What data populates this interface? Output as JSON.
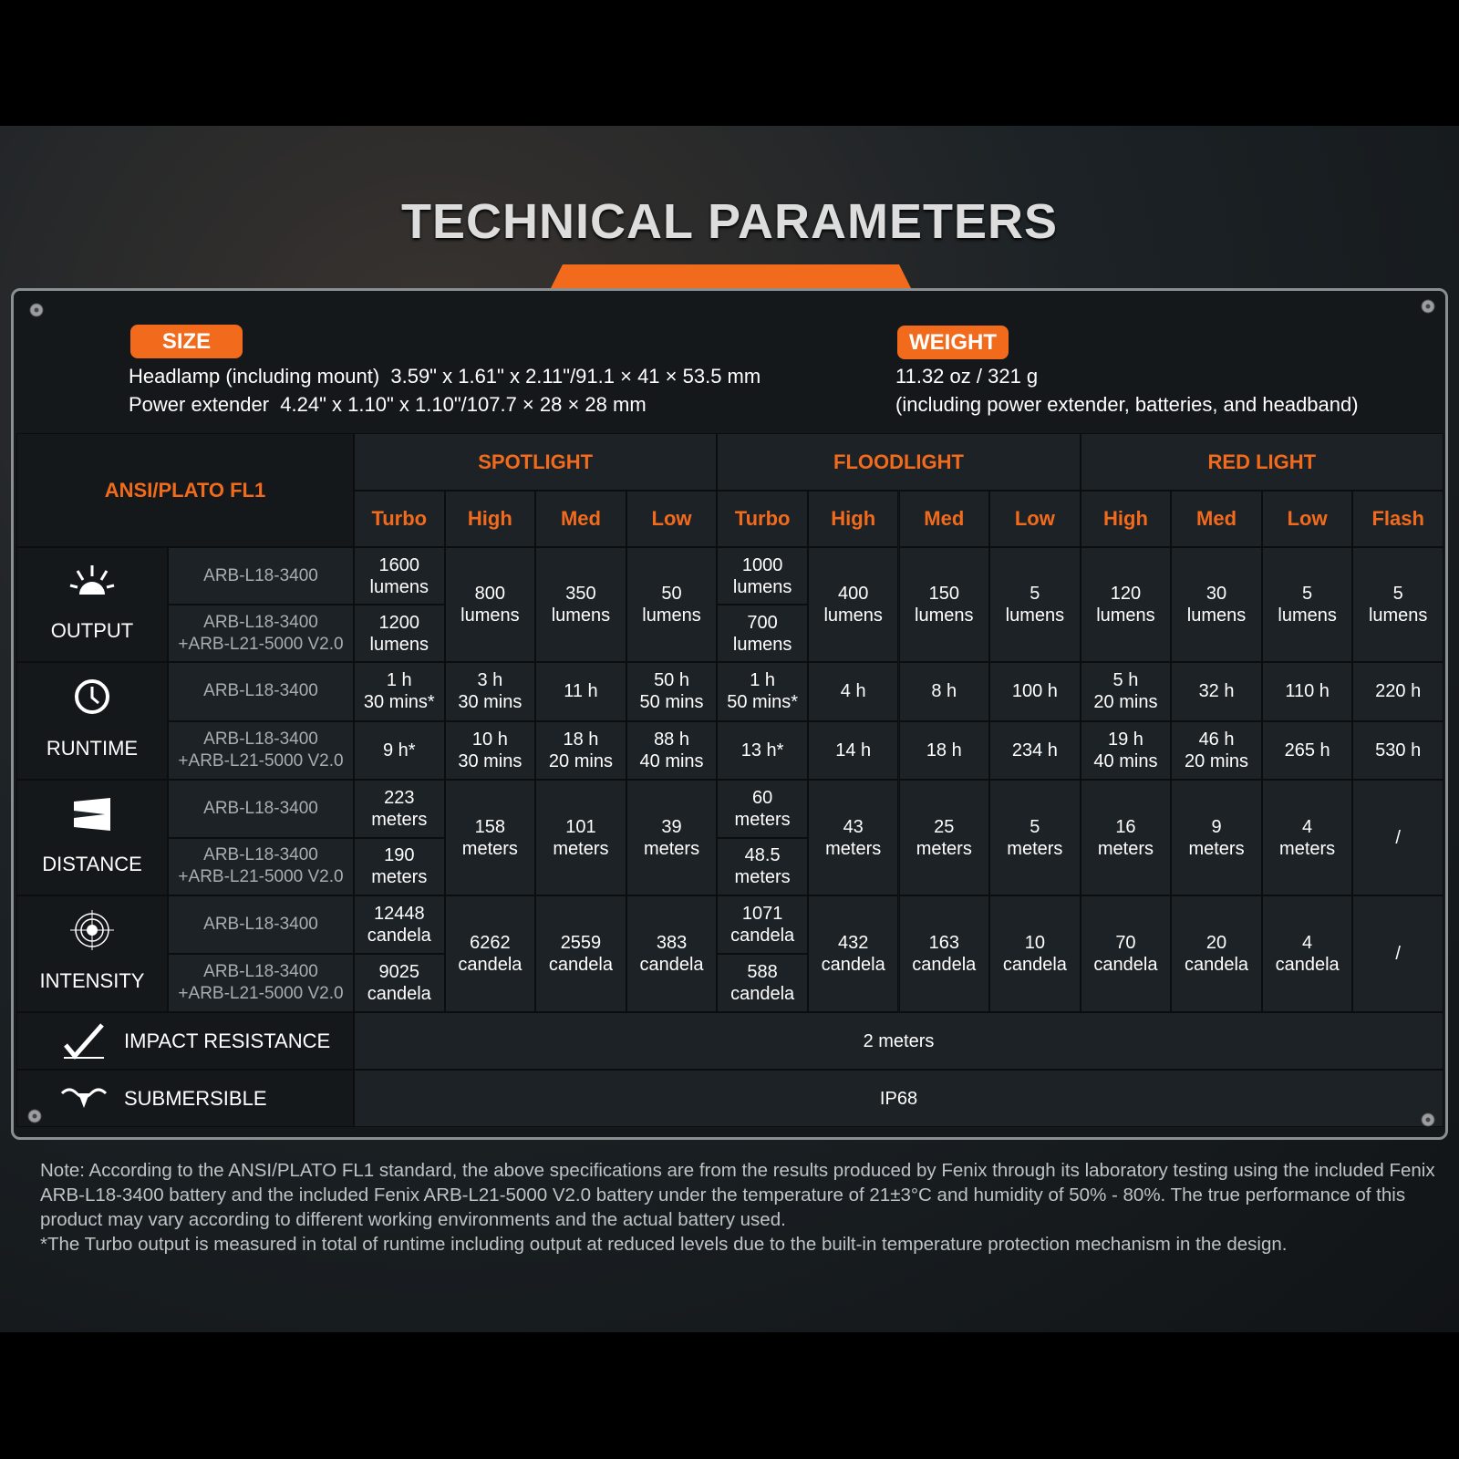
{
  "title": "TECHNICAL PARAMETERS",
  "size": {
    "label": "SIZE",
    "lines": [
      "Headlamp (including mount)  3.59\" x 1.61\" x 2.11\"/91.1 × 41 × 53.5 mm",
      "Power extender  4.24\" x 1.10\" x 1.10\"/107.7 × 28 × 28 mm"
    ]
  },
  "weight": {
    "label": "WEIGHT",
    "lines": [
      "11.32 oz / 321 g",
      "(including power extender, batteries, and headband)"
    ]
  },
  "table": {
    "standard": "ANSI/PLATO FL1",
    "groups": [
      {
        "name": "SPOTLIGHT",
        "modes": [
          "Turbo",
          "High",
          "Med",
          "Low"
        ]
      },
      {
        "name": "FLOODLIGHT",
        "modes": [
          "Turbo",
          "High",
          "Med",
          "Low"
        ]
      },
      {
        "name": "RED LIGHT",
        "modes": [
          "High",
          "Med",
          "Low",
          "Flash"
        ]
      }
    ],
    "batteries": [
      "ARB-L18-3400",
      "ARB-L18-3400\n+ARB-L21-5000 V2.0"
    ],
    "rows": [
      {
        "label": "OUTPUT",
        "cells": [
          [
            "1600\nlumens",
            "1200\nlumens"
          ],
          "800\nlumens",
          "350\nlumens",
          "50\nlumens",
          [
            "1000\nlumens",
            "700\nlumens"
          ],
          "400\nlumens",
          "150\nlumens",
          "5\nlumens",
          "120\nlumens",
          "30\nlumens",
          "5\nlumens",
          "5\nlumens"
        ]
      },
      {
        "label": "RUNTIME",
        "cells": [
          [
            "1 h\n30 mins*",
            "9 h*"
          ],
          [
            "3 h\n30 mins",
            "10 h\n30 mins"
          ],
          [
            "11 h",
            "18 h\n20 mins"
          ],
          [
            "50 h\n50 mins",
            "88 h\n40 mins"
          ],
          [
            "1 h\n50 mins*",
            "13 h*"
          ],
          [
            "4 h",
            "14 h"
          ],
          [
            "8 h",
            "18 h"
          ],
          [
            "100 h",
            "234 h"
          ],
          [
            "5 h\n20 mins",
            "19 h\n40 mins"
          ],
          [
            "32 h",
            "46 h\n20 mins"
          ],
          [
            "110 h",
            "265 h"
          ],
          [
            "220 h",
            "530 h"
          ]
        ]
      },
      {
        "label": "DISTANCE",
        "cells": [
          [
            "223\nmeters",
            "190\nmeters"
          ],
          "158\nmeters",
          "101\nmeters",
          "39\nmeters",
          [
            "60\nmeters",
            "48.5\nmeters"
          ],
          "43\nmeters",
          "25\nmeters",
          "5\nmeters",
          "16\nmeters",
          "9\nmeters",
          "4\nmeters",
          "/"
        ]
      },
      {
        "label": "INTENSITY",
        "cells": [
          [
            "12448\ncandela",
            "9025\ncandela"
          ],
          "6262\ncandela",
          "2559\ncandela",
          "383\ncandela",
          [
            "1071\ncandela",
            "588\ncandela"
          ],
          "432\ncandela",
          "163\ncandela",
          "10\ncandela",
          "70\ncandela",
          "20\ncandela",
          "4\ncandela",
          "/"
        ]
      }
    ],
    "extra": [
      {
        "label": "IMPACT RESISTANCE",
        "value": "2 meters"
      },
      {
        "label": "SUBMERSIBLE",
        "value": "IP68"
      }
    ]
  },
  "notes": [
    "Note: According to the ANSI/PLATO FL1 standard, the above specifications are from the results produced by Fenix through its laboratory testing using the included Fenix ARB-L18-3400 battery and the included Fenix ARB-L21-5000 V2.0 battery under the temperature of 21±3°C and humidity of 50% - 80%. The true performance of this product may vary according to different working environments and the actual battery used.",
    "*The Turbo output is measured in total of runtime including output at reduced levels due to the built-in temperature protection mechanism in the design."
  ]
}
